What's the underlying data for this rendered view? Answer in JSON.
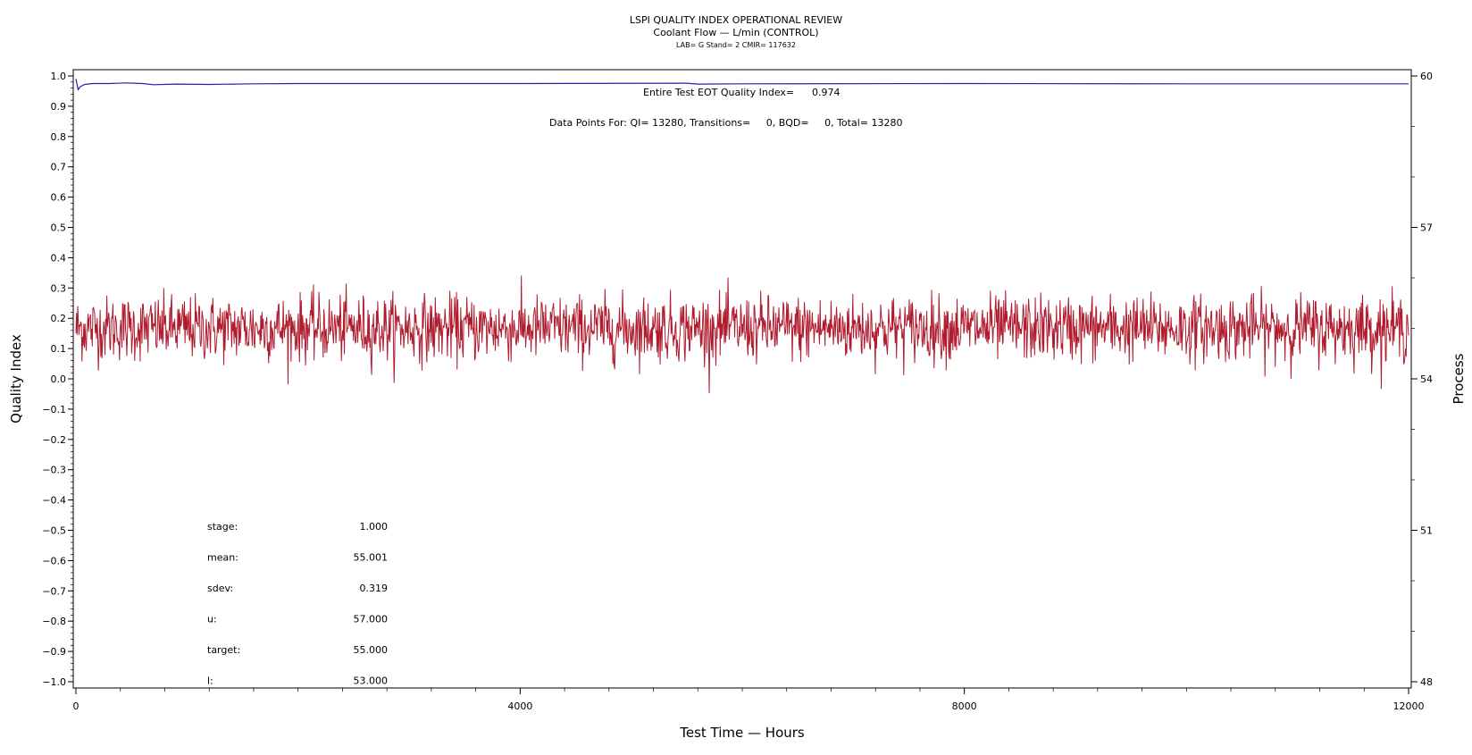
{
  "chart_data": {
    "type": "line",
    "title": "LSPI QUALITY INDEX OPERATIONAL REVIEW",
    "subtitle": "Coolant Flow — L/min (CONTROL)",
    "subsubtitle": "LAB= G Stand= 2 CMIR= 117632",
    "xlabel": "Test Time — Hours",
    "ylabel": "Quality Index",
    "y2label": "Process",
    "xlim": [
      0,
      12000
    ],
    "ylim": [
      -1.0,
      1.0
    ],
    "y2lim": [
      48,
      60
    ],
    "x_ticks": [
      0,
      4000,
      8000,
      12000
    ],
    "y_ticks": [
      1.0,
      0.9,
      0.8,
      0.7,
      0.6,
      0.5,
      0.4,
      0.3,
      0.2,
      0.1,
      0.0,
      -0.1,
      -0.2,
      -0.3,
      -0.4,
      -0.5,
      -0.6,
      -0.7,
      -0.8,
      -0.9,
      -1.0
    ],
    "y_tick_labels": [
      "1.0",
      "0.9",
      "0.8",
      "0.7",
      "0.6",
      "0.5",
      "0.4",
      "0.3",
      "0.2",
      "0.1",
      "0.0",
      "−0.1",
      "−0.2",
      "−0.3",
      "−0.4",
      "−0.5",
      "−0.6",
      "−0.7",
      "−0.8",
      "−0.9",
      "−1.0"
    ],
    "y2_ticks": [
      60,
      57,
      54,
      51,
      48
    ],
    "grid": false,
    "annotations": {
      "quality_index_label": "Entire Test EOT Quality Index=",
      "quality_index_value": "0.974",
      "data_points_text": "Data Points For: QI= 13280, Transitions=     0, BQD=     0, Total= 13280"
    },
    "stats": [
      {
        "label": "stage:",
        "value": "1.000"
      },
      {
        "label": "mean:",
        "value": "55.001"
      },
      {
        "label": "sdev:",
        "value": "0.319"
      },
      {
        "label": "u:",
        "value": "57.000"
      },
      {
        "label": "target:",
        "value": "55.000"
      },
      {
        "label": "l:",
        "value": "53.000"
      }
    ],
    "series": [
      {
        "axis": "left",
        "color": "#2222aa",
        "x": [
          0,
          20,
          40,
          80,
          150,
          300,
          450,
          600,
          700,
          900,
          1200,
          1600,
          2000,
          4000,
          5500,
          5600,
          6000,
          8000,
          10000,
          12000
        ],
        "y": [
          0.99,
          0.955,
          0.965,
          0.972,
          0.975,
          0.975,
          0.977,
          0.975,
          0.971,
          0.973,
          0.972,
          0.974,
          0.975,
          0.975,
          0.976,
          0.973,
          0.974,
          0.975,
          0.974,
          0.974
        ]
      },
      {
        "axis": "right",
        "color": "#b01b2e",
        "x_range": [
          0,
          12000
        ],
        "points": 13280,
        "mean": 55.001,
        "sdev": 0.319,
        "approx_min": 53.6,
        "approx_max": 56.2
      }
    ],
    "colors": {
      "quality_index_line": "#2222aa",
      "process_trace": "#b01b2e",
      "axes": "#000000"
    }
  }
}
